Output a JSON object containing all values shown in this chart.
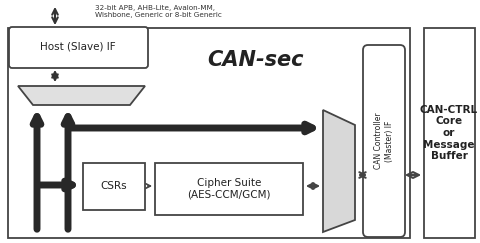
{
  "title": "CAN-sec",
  "bg_color": "#ffffff",
  "host_if_label": "Host (Slave) IF",
  "top_annotation": "32-bit APB, AHB-Lite, Avalon-MM,\nWishbone, Generic or 8-bit Generic",
  "csrs_label": "CSRs",
  "cipher_label": "Cipher Suite\n(AES-CCM/GCM)",
  "can_ctrl_label": "CAN Controller\n(Master) IF",
  "can_ctrl_right_label": "CAN-CTRL\nCore\nor\nMessage\nBuffer",
  "box_color": "#ffffff",
  "box_edge": "#444444",
  "arrow_color": "#333333",
  "thick_arrow_color": "#282828",
  "main_box_edge": "#444444",
  "trap_fill": "#e0e0e0",
  "para_fill": "#d8d8d8"
}
